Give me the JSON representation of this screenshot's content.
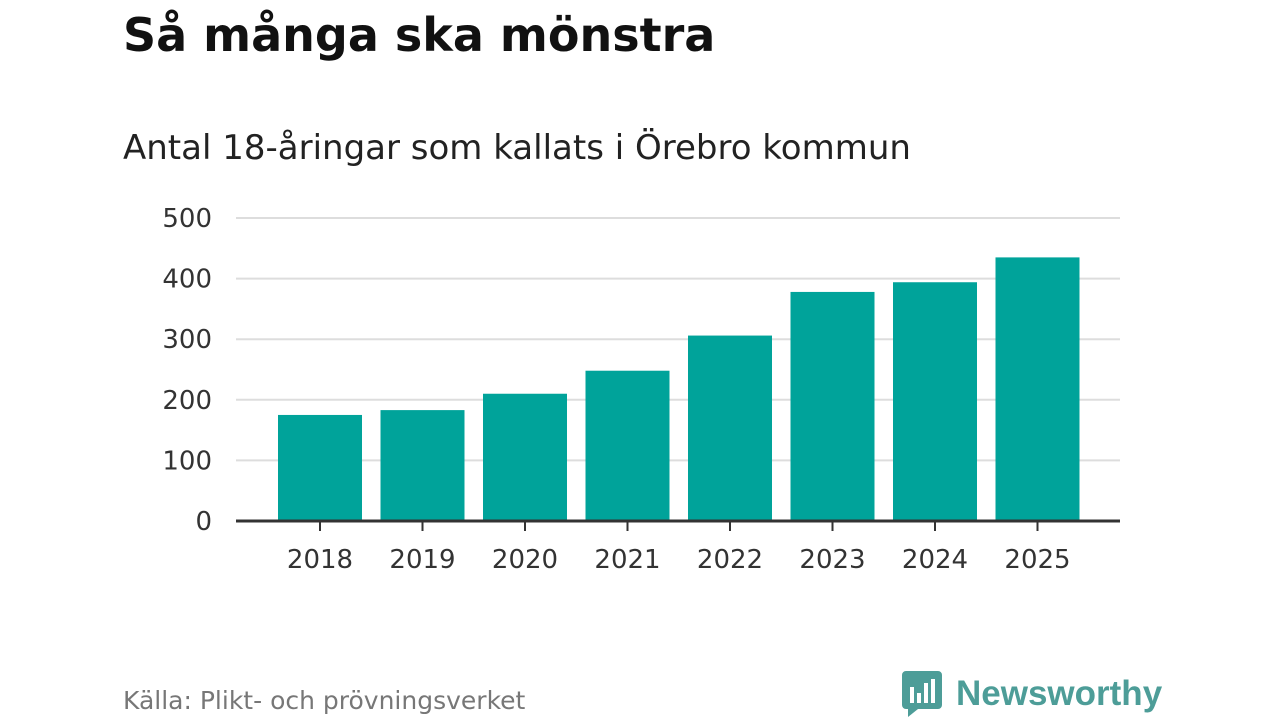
{
  "header": {
    "title": "Så många ska mönstra",
    "subtitle": "Antal 18-åringar som kallats i Örebro kommun"
  },
  "footer": {
    "source": "Källa: Plikt- och prövningsverket",
    "brand": "Newsworthy",
    "brand_icon": "bar-chart-speech-bubble-icon"
  },
  "colors": {
    "bar": "#00a39a",
    "grid": "#dddddd",
    "axis": "#333333",
    "brand": "#4d9d98"
  },
  "chart_data": {
    "type": "bar",
    "categories": [
      "2018",
      "2019",
      "2020",
      "2021",
      "2022",
      "2023",
      "2024",
      "2025"
    ],
    "values": [
      175,
      183,
      210,
      248,
      306,
      378,
      394,
      435
    ],
    "xlabel": "",
    "ylabel": "",
    "ylim": [
      0,
      500
    ],
    "yticks": [
      0,
      100,
      200,
      300,
      400,
      500
    ],
    "grid": true,
    "legend": "none"
  }
}
